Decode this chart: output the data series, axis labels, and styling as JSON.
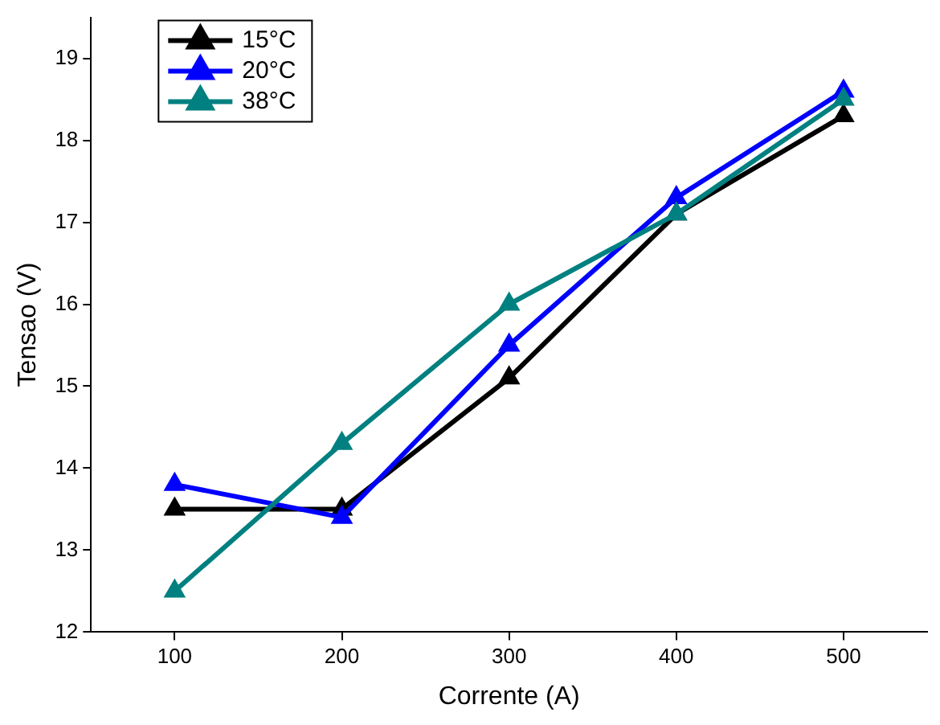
{
  "chart_data": {
    "type": "line",
    "xlabel": "Corrente (A)",
    "ylabel": "Tensao (V)",
    "x": [
      100,
      200,
      300,
      400,
      500
    ],
    "series": [
      {
        "name": "15°C",
        "color": "#000000",
        "values": [
          13.5,
          13.5,
          15.1,
          17.1,
          18.3
        ]
      },
      {
        "name": "20°C",
        "color": "#0000ff",
        "values": [
          13.8,
          13.4,
          15.5,
          17.3,
          18.6
        ]
      },
      {
        "name": "38°C",
        "color": "#008080",
        "values": [
          12.5,
          14.3,
          16.0,
          17.1,
          18.5
        ]
      }
    ],
    "xlim": [
      50,
      550
    ],
    "xticks": [
      100,
      200,
      300,
      400,
      500
    ],
    "ylim": [
      12,
      19.5
    ],
    "yticks": [
      12,
      13,
      14,
      15,
      16,
      17,
      18,
      19
    ],
    "grid": false,
    "legend": "top left",
    "marker": "triangle",
    "line_style": "solid"
  }
}
